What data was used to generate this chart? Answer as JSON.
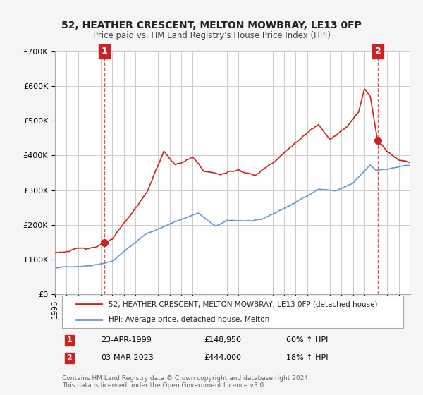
{
  "title": "52, HEATHER CRESCENT, MELTON MOWBRAY, LE13 0FP",
  "subtitle": "Price paid vs. HM Land Registry's House Price Index (HPI)",
  "legend_line1": "52, HEATHER CRESCENT, MELTON MOWBRAY, LE13 0FP (detached house)",
  "legend_line2": "HPI: Average price, detached house, Melton",
  "transaction1_label": "1",
  "transaction1_date": "23-APR-1999",
  "transaction1_price": "£148,950",
  "transaction1_hpi": "60% ↑ HPI",
  "transaction2_label": "2",
  "transaction2_date": "03-MAR-2023",
  "transaction2_price": "£444,000",
  "transaction2_hpi": "18% ↑ HPI",
  "footer": "Contains HM Land Registry data © Crown copyright and database right 2024.\nThis data is licensed under the Open Government Licence v3.0.",
  "hpi_color": "#6699cc",
  "price_color": "#cc2222",
  "marker_color": "#cc2222",
  "vline_color": "#dd4444",
  "label_box_color": "#cc2222",
  "background_color": "#f5f5f5",
  "plot_bg_color": "#ffffff",
  "grid_color": "#cccccc",
  "ylim": [
    0,
    700000
  ],
  "xmin": 1995,
  "xmax": 2026,
  "transaction1_x": 1999.31,
  "transaction1_y": 148950,
  "transaction2_x": 2023.17,
  "transaction2_y": 444000
}
